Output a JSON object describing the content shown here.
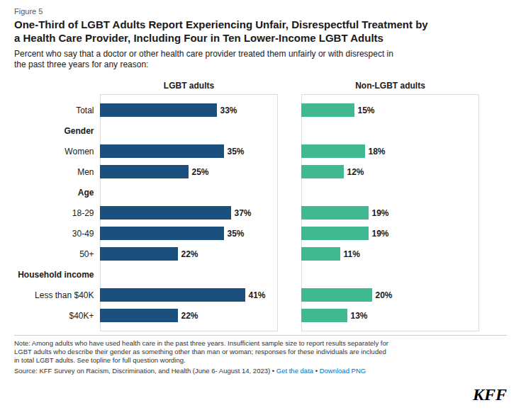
{
  "chart_data": {
    "type": "bar",
    "orientation": "horizontal",
    "title": "One-Third of LGBT Adults Report Experiencing Unfair, Disrespectful Treatment by\na Health Care Provider, Including Four in Ten Lower-Income LGBT Adults",
    "subtitle": "Percent who say that a doctor or other health care provider treated them unfairly or with disrespect in\nthe past three years for any reason:",
    "categories": [
      "Total",
      "Gender",
      "Women",
      "Men",
      "Age",
      "18-29",
      "30-49",
      "50+",
      "Household income",
      "Less than $40K",
      "$40K+"
    ],
    "series": [
      {
        "name": "LGBT adults",
        "color": "#1b4f7e",
        "values": [
          33,
          null,
          35,
          25,
          null,
          37,
          35,
          22,
          null,
          41,
          22
        ],
        "value_labels": [
          "33%",
          null,
          "35%",
          "25%",
          null,
          "37%",
          "35%",
          "22%",
          null,
          "41%",
          "22%"
        ]
      },
      {
        "name": "Non-LGBT adults",
        "color": "#40b891",
        "values": [
          15,
          null,
          18,
          12,
          null,
          19,
          19,
          11,
          null,
          20,
          13
        ],
        "value_labels": [
          "15%",
          null,
          "18%",
          "12%",
          null,
          "19%",
          "19%",
          "11%",
          null,
          "20%",
          "13%"
        ]
      }
    ],
    "xlim": [
      0,
      50
    ],
    "data_labels": true,
    "tick_labels": "y",
    "grid": false,
    "notes": "Note: Among adults who have used health care in the past three years. Insufficient sample size to report results separately for\nLGBT adults who describe their gender as something other than man or woman; responses for these individuals are included\nin total LGBT adults. See topline for full question wording.",
    "source": [
      {
        "text": "Source: KFF Survey on Racism, Discrimination, and Health (June 6- August 14, 2023) • ",
        "color": "#333333"
      },
      {
        "text": "Get the data",
        "color": "#0070c0"
      },
      {
        "text": " • ",
        "color": "#333333"
      },
      {
        "text": "Download PNG",
        "color": "#0070c0"
      }
    ],
    "annotations": {
      "figure_label": "Figure 5",
      "logo": "KFF"
    }
  }
}
